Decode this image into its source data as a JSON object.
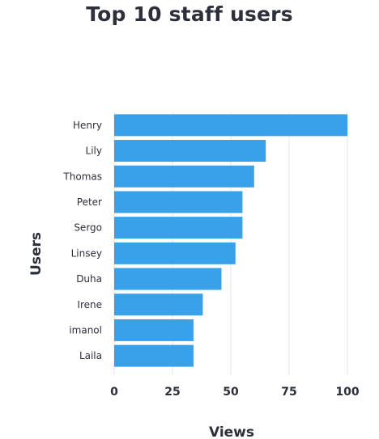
{
  "chart_data": {
    "type": "bar",
    "orientation": "horizontal",
    "title": "Top 10 staff users",
    "xlabel": "Views",
    "ylabel": "Users",
    "categories": [
      "Henry",
      "Lily",
      "Thomas",
      "Peter",
      "Sergo",
      "Linsey",
      "Duha",
      "Irene",
      "imanol",
      "Laila"
    ],
    "values": [
      100,
      65,
      60,
      55,
      55,
      52,
      46,
      38,
      34,
      34
    ],
    "xlim": [
      0,
      100
    ],
    "xticks": [
      0,
      25,
      50,
      75,
      100
    ],
    "grid": true,
    "legend": "none",
    "bar_color": "#39a0ea",
    "grid_color": "#e4e4e4",
    "text_color": "#2d2f3a"
  }
}
